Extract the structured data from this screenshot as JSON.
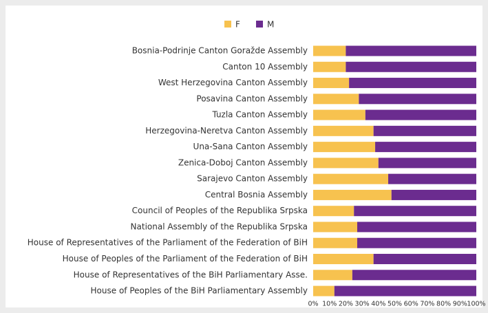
{
  "chart_data": {
    "type": "stacked-bar-horizontal",
    "categories": [
      "Bosnia-Podrinje Canton Goražde Assembly",
      "Canton 10 Assembly",
      "West Herzegovina Canton Assembly",
      "Posavina Canton Assembly",
      "Tuzla Canton Assembly",
      "Herzegovina-Neretva Canton Assembly",
      "Una-Sana Canton Assembly",
      "Zenica-Doboj Canton Assembly",
      "Sarajevo Canton Assembly",
      "Central Bosnia Assembly",
      "Council of Peoples of the Republika Srpska",
      "National Assembly of the Republika Srpska",
      "House of Representatives of the Parliament of the Federation of BiH",
      "House of Peoples of the Parliament of the Federation of BiH",
      "House of Representatives of the BiH Parliamentary Asse.",
      "House of Peoples of the BiH Parliamentary Assembly"
    ],
    "series": [
      {
        "name": "F",
        "color": "#f7c24f",
        "values": [
          20,
          20,
          22,
          28,
          32,
          37,
          38,
          40,
          46,
          48,
          25,
          27,
          27,
          37,
          24,
          13
        ]
      },
      {
        "name": "M",
        "color": "#6b2c8f",
        "values": [
          80,
          80,
          78,
          72,
          68,
          63,
          62,
          60,
          54,
          52,
          75,
          73,
          73,
          63,
          76,
          87
        ]
      }
    ],
    "xlim": [
      0,
      100
    ],
    "xticks": [
      {
        "value": 0,
        "label": "0%"
      },
      {
        "value": 10,
        "label": "10%"
      },
      {
        "value": 20,
        "label": "20%"
      },
      {
        "value": 30,
        "label": "30%"
      },
      {
        "value": 40,
        "label": "40%"
      },
      {
        "value": 50,
        "label": "50%"
      },
      {
        "value": 60,
        "label": "60%"
      },
      {
        "value": 70,
        "label": "70%"
      },
      {
        "value": 80,
        "label": "80%"
      },
      {
        "value": 90,
        "label": "90%"
      },
      {
        "value": 100,
        "label": "100%"
      }
    ],
    "legend": "top"
  }
}
